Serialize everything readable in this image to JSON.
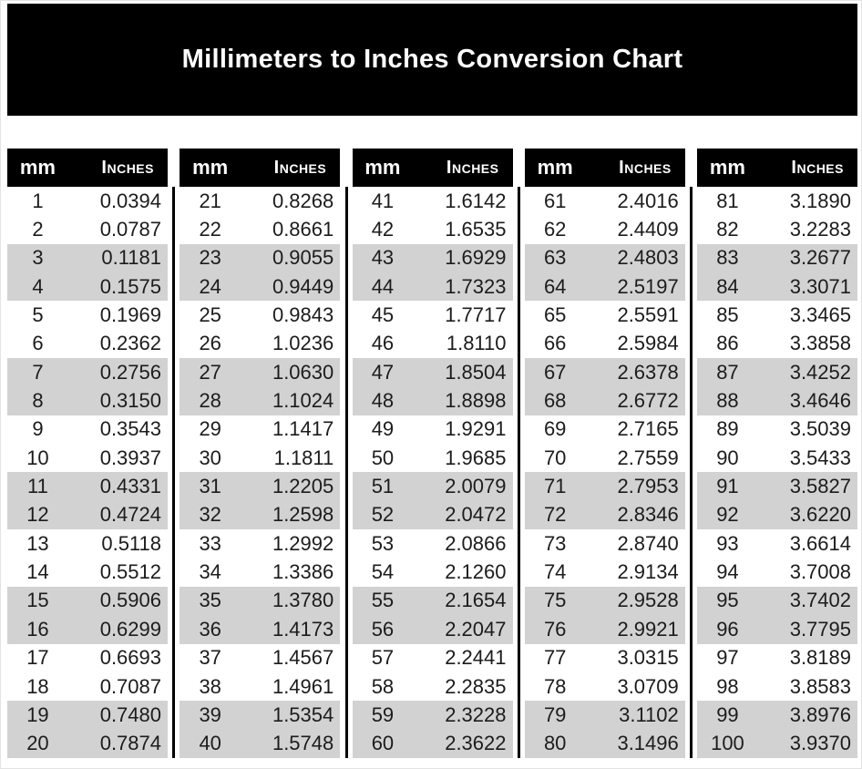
{
  "title": "Millimeters to Inches Conversion Chart",
  "column_headers": {
    "mm": "mm",
    "inches": "Inches"
  },
  "colors": {
    "banner_bg": "#000000",
    "table_header_bg": "#000000",
    "header_text": "#ffffff",
    "row_stripe": "#d2d2d2",
    "row_plain": "#ffffff",
    "cell_text": "#1c1c1c",
    "divider": "#000000"
  },
  "chart_data": {
    "type": "table",
    "title": "Millimeters to Inches Conversion Chart",
    "columns": [
      "mm",
      "Inches"
    ],
    "layout": "5 side-by-side tables of 20 rows, rows shaded gray in pairs",
    "tables": [
      {
        "rows": [
          [
            "1",
            "0.0394"
          ],
          [
            "2",
            "0.0787"
          ],
          [
            "3",
            "0.1181"
          ],
          [
            "4",
            "0.1575"
          ],
          [
            "5",
            "0.1969"
          ],
          [
            "6",
            "0.2362"
          ],
          [
            "7",
            "0.2756"
          ],
          [
            "8",
            "0.3150"
          ],
          [
            "9",
            "0.3543"
          ],
          [
            "10",
            "0.3937"
          ],
          [
            "11",
            "0.4331"
          ],
          [
            "12",
            "0.4724"
          ],
          [
            "13",
            "0.5118"
          ],
          [
            "14",
            "0.5512"
          ],
          [
            "15",
            "0.5906"
          ],
          [
            "16",
            "0.6299"
          ],
          [
            "17",
            "0.6693"
          ],
          [
            "18",
            "0.7087"
          ],
          [
            "19",
            "0.7480"
          ],
          [
            "20",
            "0.7874"
          ]
        ]
      },
      {
        "rows": [
          [
            "21",
            "0.8268"
          ],
          [
            "22",
            "0.8661"
          ],
          [
            "23",
            "0.9055"
          ],
          [
            "24",
            "0.9449"
          ],
          [
            "25",
            "0.9843"
          ],
          [
            "26",
            "1.0236"
          ],
          [
            "27",
            "1.0630"
          ],
          [
            "28",
            "1.1024"
          ],
          [
            "29",
            "1.1417"
          ],
          [
            "30",
            "1.1811"
          ],
          [
            "31",
            "1.2205"
          ],
          [
            "32",
            "1.2598"
          ],
          [
            "33",
            "1.2992"
          ],
          [
            "34",
            "1.3386"
          ],
          [
            "35",
            "1.3780"
          ],
          [
            "36",
            "1.4173"
          ],
          [
            "37",
            "1.4567"
          ],
          [
            "38",
            "1.4961"
          ],
          [
            "39",
            "1.5354"
          ],
          [
            "40",
            "1.5748"
          ]
        ]
      },
      {
        "rows": [
          [
            "41",
            "1.6142"
          ],
          [
            "42",
            "1.6535"
          ],
          [
            "43",
            "1.6929"
          ],
          [
            "44",
            "1.7323"
          ],
          [
            "45",
            "1.7717"
          ],
          [
            "46",
            "1.8110"
          ],
          [
            "47",
            "1.8504"
          ],
          [
            "48",
            "1.8898"
          ],
          [
            "49",
            "1.9291"
          ],
          [
            "50",
            "1.9685"
          ],
          [
            "51",
            "2.0079"
          ],
          [
            "52",
            "2.0472"
          ],
          [
            "53",
            "2.0866"
          ],
          [
            "54",
            "2.1260"
          ],
          [
            "55",
            "2.1654"
          ],
          [
            "56",
            "2.2047"
          ],
          [
            "57",
            "2.2441"
          ],
          [
            "58",
            "2.2835"
          ],
          [
            "59",
            "2.3228"
          ],
          [
            "60",
            "2.3622"
          ]
        ]
      },
      {
        "rows": [
          [
            "61",
            "2.4016"
          ],
          [
            "62",
            "2.4409"
          ],
          [
            "63",
            "2.4803"
          ],
          [
            "64",
            "2.5197"
          ],
          [
            "65",
            "2.5591"
          ],
          [
            "66",
            "2.5984"
          ],
          [
            "67",
            "2.6378"
          ],
          [
            "68",
            "2.6772"
          ],
          [
            "69",
            "2.7165"
          ],
          [
            "70",
            "2.7559"
          ],
          [
            "71",
            "2.7953"
          ],
          [
            "72",
            "2.8346"
          ],
          [
            "73",
            "2.8740"
          ],
          [
            "74",
            "2.9134"
          ],
          [
            "75",
            "2.9528"
          ],
          [
            "76",
            "2.9921"
          ],
          [
            "77",
            "3.0315"
          ],
          [
            "78",
            "3.0709"
          ],
          [
            "79",
            "3.1102"
          ],
          [
            "80",
            "3.1496"
          ]
        ]
      },
      {
        "rows": [
          [
            "81",
            "3.1890"
          ],
          [
            "82",
            "3.2283"
          ],
          [
            "83",
            "3.2677"
          ],
          [
            "84",
            "3.3071"
          ],
          [
            "85",
            "3.3465"
          ],
          [
            "86",
            "3.3858"
          ],
          [
            "87",
            "3.4252"
          ],
          [
            "88",
            "3.4646"
          ],
          [
            "89",
            "3.5039"
          ],
          [
            "90",
            "3.5433"
          ],
          [
            "91",
            "3.5827"
          ],
          [
            "92",
            "3.6220"
          ],
          [
            "93",
            "3.6614"
          ],
          [
            "94",
            "3.7008"
          ],
          [
            "95",
            "3.7402"
          ],
          [
            "96",
            "3.7795"
          ],
          [
            "97",
            "3.8189"
          ],
          [
            "98",
            "3.8583"
          ],
          [
            "99",
            "3.8976"
          ],
          [
            "100",
            "3.9370"
          ]
        ]
      }
    ]
  }
}
